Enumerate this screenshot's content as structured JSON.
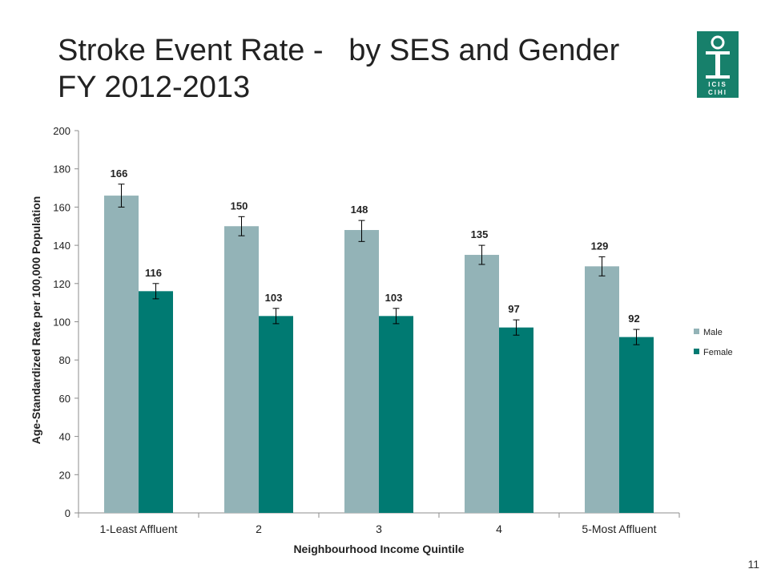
{
  "slide": {
    "title_line1": "Stroke Event Rate -   by SES and Gender",
    "title_line2": "FY 2012-2013",
    "page_number": "11",
    "logo": {
      "text_top": "ICIS",
      "text_bottom": "CIHI",
      "icon": "icis-cihi-logo",
      "color": "#17806b"
    }
  },
  "chart_data": {
    "type": "bar",
    "title": "",
    "xlabel": "Neighbourhood Income Quintile",
    "ylabel": "Age-Standardized Rate per 100,000 Population",
    "ylim": [
      0,
      200
    ],
    "yticks": [
      0,
      20,
      40,
      60,
      80,
      100,
      120,
      140,
      160,
      180,
      200
    ],
    "grid": false,
    "legend_position": "right",
    "categories": [
      "1-Least Affluent",
      "2",
      "3",
      "4",
      "5-Most Affluent"
    ],
    "series": [
      {
        "name": "Male",
        "color": "#93b3b7",
        "values": [
          166,
          150,
          148,
          135,
          129
        ],
        "labels": [
          "166",
          "150",
          "148",
          "135",
          "129"
        ],
        "error_low": [
          160,
          145,
          142,
          130,
          124
        ],
        "error_high": [
          172,
          155,
          153,
          140,
          134
        ]
      },
      {
        "name": "Female",
        "color": "#007a72",
        "values": [
          116,
          103,
          103,
          97,
          92
        ],
        "labels": [
          "116",
          "103",
          "103",
          "97",
          "92"
        ],
        "error_low": [
          112,
          99,
          99,
          93,
          88
        ],
        "error_high": [
          120,
          107,
          107,
          101,
          96
        ]
      }
    ]
  }
}
